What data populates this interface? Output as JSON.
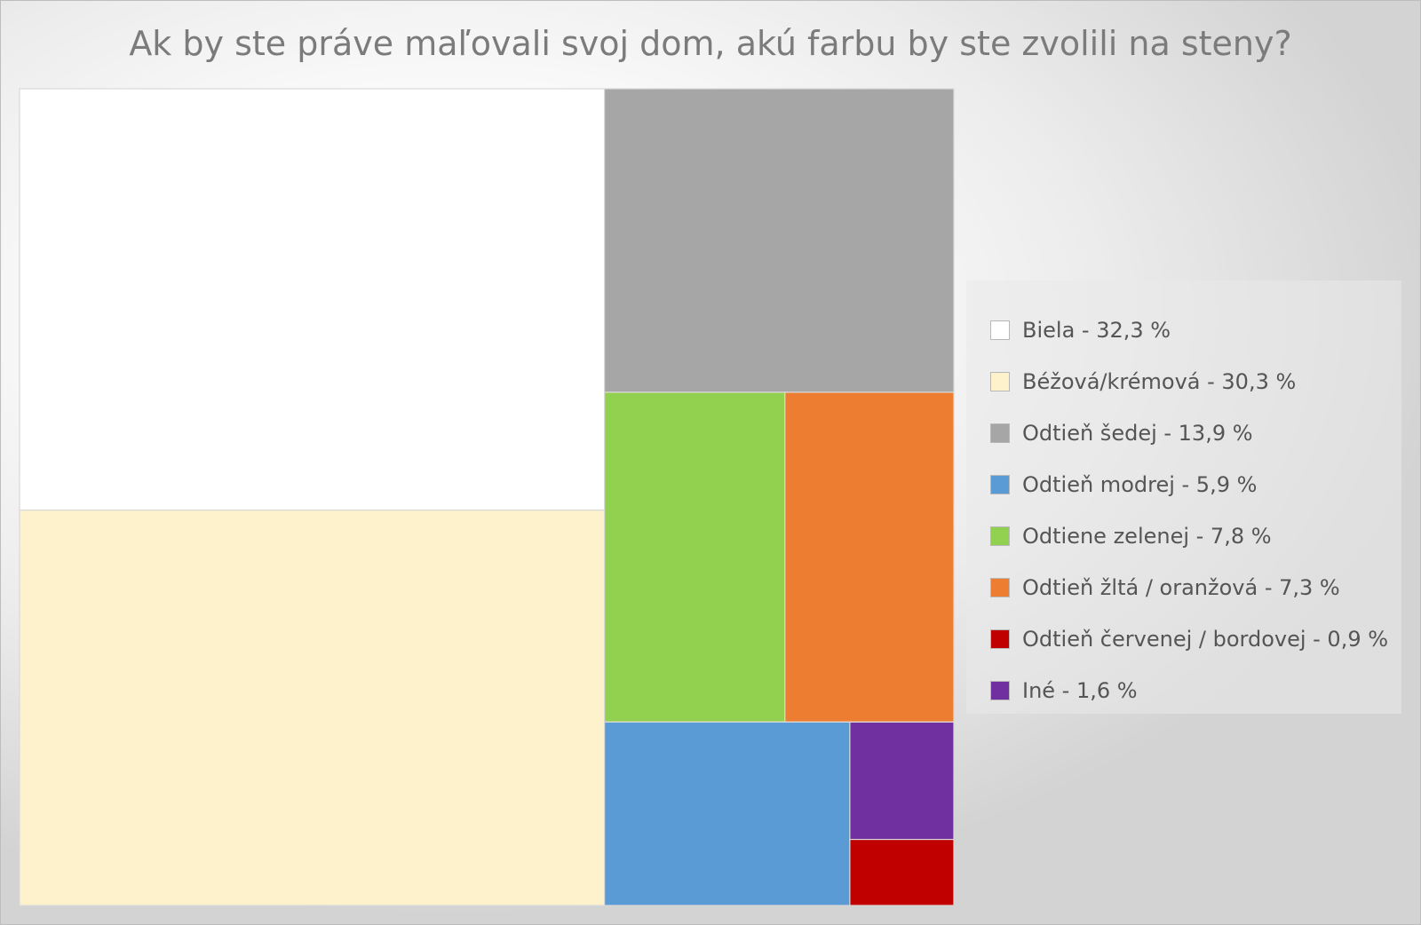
{
  "chart_data": {
    "type": "treemap",
    "title": "Ak by ste práve maľovali svoj dom, akú farbu by ste zvolili na steny?",
    "unit": "%",
    "legend_position": "right",
    "series": [
      {
        "label": "Biela - 32,3 %",
        "value": 32.3,
        "color": "#ffffff"
      },
      {
        "label": "Béžová/krémová - 30,3 %",
        "value": 30.3,
        "color": "#fef2cd"
      },
      {
        "label": "Odtieň šedej - 13,9 %",
        "value": 13.9,
        "color": "#a6a6a6"
      },
      {
        "label": "Odtieň modrej - 5,9 %",
        "value": 5.9,
        "color": "#5b9bd5"
      },
      {
        "label": "Odtiene zelenej - 7,8 %",
        "value": 7.8,
        "color": "#92d050"
      },
      {
        "label": "Odtieň žltá / oranžová - 7,3 %",
        "value": 7.3,
        "color": "#ed7d31"
      },
      {
        "label": "Odtieň červenej / bordovej - 0,9 %",
        "value": 0.9,
        "color": "#c00000"
      },
      {
        "label": "Iné - 1,6 %",
        "value": 1.6,
        "color": "#7030a0"
      }
    ]
  }
}
